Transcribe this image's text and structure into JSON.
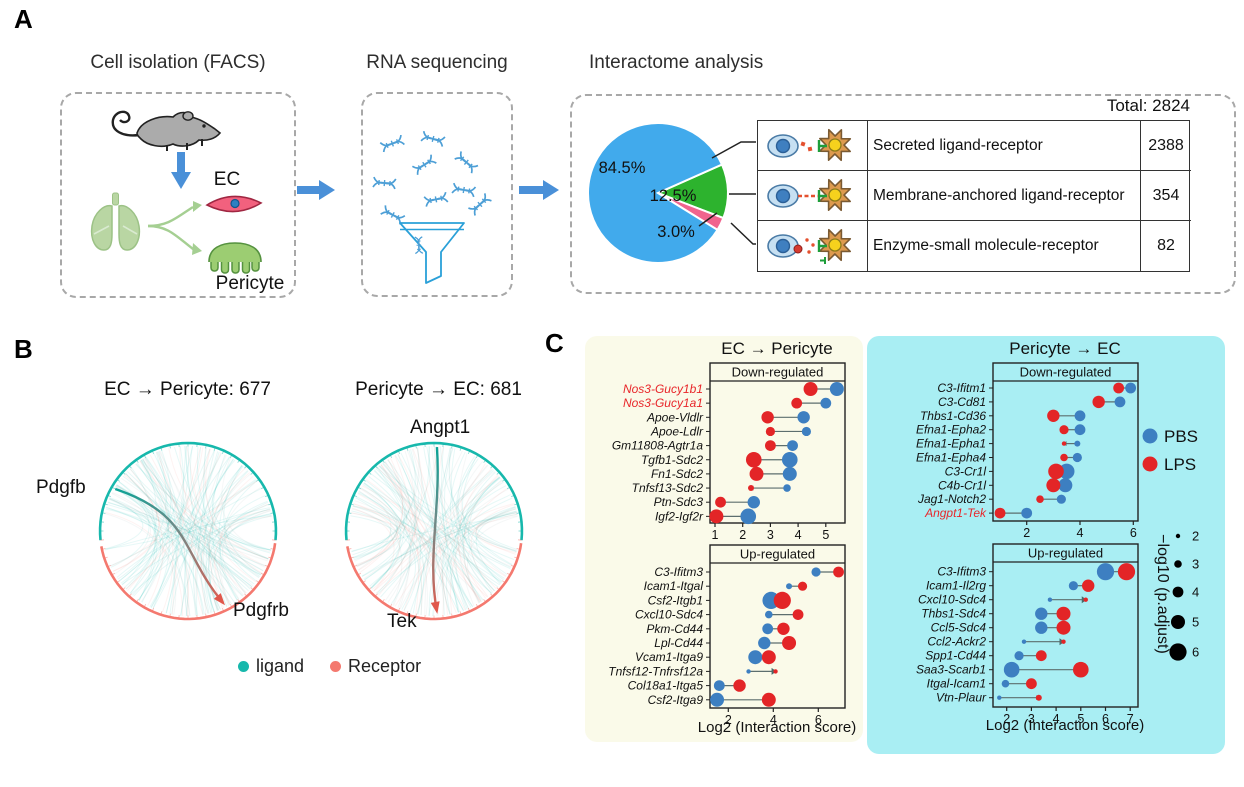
{
  "figure": {
    "panelA": {
      "label": "A",
      "step1_title": "Cell isolation (FACS)",
      "step2_title": "RNA sequencing",
      "step3_title": "Interactome analysis",
      "ec_label": "EC",
      "pericyte_label": "Pericyte",
      "total_label": "Total: 2824",
      "pie": {
        "slices": [
          {
            "label": "84.5%",
            "value": 84.5,
            "color": "#41aaec",
            "category": "Secreted ligand-receptor"
          },
          {
            "label": "12.5%",
            "value": 12.5,
            "color": "#2db32e",
            "category": "Membrane-anchored ligand-receptor"
          },
          {
            "label": "3.0%",
            "value": 3.0,
            "color": "#f0648e",
            "category": "Enzyme-small molecule-receptor"
          }
        ]
      },
      "table": {
        "rows": [
          {
            "icon": "secreted-ligand-receptor-icon",
            "name": "Secreted ligand-receptor",
            "count": "2388"
          },
          {
            "icon": "membrane-anchored-ligand-receptor-icon",
            "name": "Membrane-anchored ligand-receptor",
            "count": "354"
          },
          {
            "icon": "enzyme-small-molecule-receptor-icon",
            "name": "Enzyme-small molecule-receptor",
            "count": "82"
          }
        ]
      }
    },
    "panelB": {
      "label": "B",
      "left_title": "EC → Pericyte: 677",
      "right_title": "Pericyte → EC: 681",
      "left_ligand": "Pdgfb",
      "left_receptor": "Pdgfrb",
      "right_ligand": "Angpt1",
      "right_receptor": "Tek",
      "legend": [
        {
          "label": "ligand",
          "color": "#17b8ac"
        },
        {
          "label": "Receptor",
          "color": "#f4796f"
        }
      ]
    },
    "panelC": {
      "label": "C",
      "left_title": "EC → Pericyte",
      "right_title": "Pericyte → EC",
      "xlabel": "Log2 (Interaction score)",
      "series_legend": [
        {
          "label": "PBS",
          "color": "#3d7fc1"
        },
        {
          "label": "LPS",
          "color": "#e32527"
        }
      ],
      "size_legend": {
        "title": "−log10 (p.adjust)",
        "values": [
          2,
          3,
          4,
          5,
          6
        ]
      }
    }
  },
  "chart_data": [
    {
      "id": "interaction_pie",
      "type": "pie",
      "labels": [
        "Secreted ligand-receptor",
        "Membrane-anchored ligand-receptor",
        "Enzyme-small molecule-receptor"
      ],
      "values": [
        2388,
        354,
        82
      ],
      "percents": [
        84.5,
        12.5,
        3.0
      ],
      "percent_labels": [
        "84.5%",
        "12.5%",
        "3.0%"
      ],
      "total": 2824
    },
    {
      "id": "circos_ec_pericyte",
      "type": "chord",
      "title": "EC → Pericyte: 677",
      "n_interactions": 677,
      "highlight": {
        "ligand": "Pdgfb",
        "receptor": "Pdgfrb"
      }
    },
    {
      "id": "circos_pericyte_ec",
      "type": "chord",
      "title": "Pericyte → EC: 681",
      "n_interactions": 681,
      "highlight": {
        "ligand": "Angpt1",
        "receptor": "Tek"
      }
    },
    {
      "id": "ec_pericyte_down",
      "type": "dumbbell_dot",
      "group": "EC → Pericyte",
      "title": "Down-regulated",
      "xlabel": "Log2 (Interaction score)",
      "xticks": [
        1,
        2,
        3,
        4,
        5
      ],
      "series": [
        "PBS",
        "LPS"
      ],
      "size_encoding": "−log10 (p.adjust)",
      "rows": [
        {
          "pair": "Nos3-Gucy1b1",
          "red_label": true,
          "PBS": 5.4,
          "LPS": 4.45,
          "PBS_size": 5,
          "LPS_size": 5
        },
        {
          "pair": "Nos3-Gucy1a1",
          "red_label": true,
          "PBS": 5.0,
          "LPS": 3.95,
          "PBS_size": 4,
          "LPS_size": 4
        },
        {
          "pair": "Apoe-Vldlr",
          "PBS": 4.2,
          "LPS": 2.9,
          "PBS_size": 4.5,
          "LPS_size": 4.5
        },
        {
          "pair": "Apoe-Ldlr",
          "PBS": 4.3,
          "LPS": 3.0,
          "PBS_size": 3.5,
          "LPS_size": 3.5
        },
        {
          "pair": "Gm11808-Agtr1a",
          "PBS": 3.8,
          "LPS": 3.0,
          "PBS_size": 4,
          "LPS_size": 4
        },
        {
          "pair": "Tgfb1-Sdc2",
          "PBS": 3.7,
          "LPS": 2.4,
          "PBS_size": 5.5,
          "LPS_size": 5.5
        },
        {
          "pair": "Fn1-Sdc2",
          "PBS": 3.7,
          "LPS": 2.5,
          "PBS_size": 5,
          "LPS_size": 5
        },
        {
          "pair": "Tnfsf13-Sdc2",
          "PBS": 3.6,
          "LPS": 2.3,
          "PBS_size": 3,
          "LPS_size": 2.5
        },
        {
          "pair": "Ptn-Sdc3",
          "PBS": 2.4,
          "LPS": 1.2,
          "PBS_size": 4.5,
          "LPS_size": 4
        },
        {
          "pair": "Igf2-Igf2r",
          "PBS": 2.2,
          "LPS": 1.05,
          "PBS_size": 5.5,
          "LPS_size": 5
        }
      ]
    },
    {
      "id": "ec_pericyte_up",
      "type": "dumbbell_dot",
      "group": "EC → Pericyte",
      "title": "Up-regulated",
      "xlabel": "Log2 (Interaction score)",
      "xticks": [
        2,
        4,
        6
      ],
      "series": [
        "PBS",
        "LPS"
      ],
      "size_encoding": "−log10 (p.adjust)",
      "rows": [
        {
          "pair": "C3-Ifitm3",
          "PBS": 5.9,
          "LPS": 6.9,
          "PBS_size": 3.5,
          "LPS_size": 4
        },
        {
          "pair": "Icam1-Itgal",
          "PBS": 4.7,
          "LPS": 5.3,
          "PBS_size": 2.5,
          "LPS_size": 3.5
        },
        {
          "pair": "Csf2-Itgb1",
          "PBS": 3.9,
          "LPS": 4.4,
          "PBS_size": 6,
          "LPS_size": 6
        },
        {
          "pair": "Cxcl10-Sdc4",
          "PBS": 3.8,
          "LPS": 5.1,
          "PBS_size": 3,
          "LPS_size": 4
        },
        {
          "pair": "Pkm-Cd44",
          "PBS": 3.75,
          "LPS": 4.45,
          "PBS_size": 4,
          "LPS_size": 4.5
        },
        {
          "pair": "Lpl-Cd44",
          "PBS": 3.6,
          "LPS": 4.7,
          "PBS_size": 4.5,
          "LPS_size": 5
        },
        {
          "pair": "Vcam1-Itga9",
          "PBS": 3.2,
          "LPS": 3.8,
          "PBS_size": 5,
          "LPS_size": 5
        },
        {
          "pair": "Tnfsf12-Tnfrsf12a",
          "PBS": 2.9,
          "LPS": 4.1,
          "PBS_size": 2,
          "LPS_size": 2,
          "arrow": true
        },
        {
          "pair": "Col18a1-Itga5",
          "PBS": 1.6,
          "LPS": 2.5,
          "PBS_size": 4,
          "LPS_size": 4.5
        },
        {
          "pair": "Csf2-Itga9",
          "PBS": 1.5,
          "LPS": 3.8,
          "PBS_size": 5,
          "LPS_size": 5
        }
      ]
    },
    {
      "id": "pericyte_ec_down",
      "type": "dumbbell_dot",
      "group": "Pericyte → EC",
      "title": "Down-regulated",
      "xlabel": "Log2 (Interaction score)",
      "xticks": [
        2,
        4,
        6
      ],
      "series": [
        "PBS",
        "LPS"
      ],
      "size_encoding": "−log10 (p.adjust)",
      "rows": [
        {
          "pair": "C3-Ifitm1",
          "PBS": 5.9,
          "LPS": 5.45,
          "PBS_size": 4,
          "LPS_size": 4
        },
        {
          "pair": "C3-Cd81",
          "PBS": 5.5,
          "LPS": 4.7,
          "PBS_size": 4,
          "LPS_size": 4.5
        },
        {
          "pair": "Thbs1-Cd36",
          "PBS": 4.0,
          "LPS": 3.0,
          "PBS_size": 4,
          "LPS_size": 4.5
        },
        {
          "pair": "Efna1-Epha2",
          "PBS": 4.0,
          "LPS": 3.4,
          "PBS_size": 4,
          "LPS_size": 3.5
        },
        {
          "pair": "Efna1-Epha1",
          "PBS": 3.9,
          "LPS": 3.4,
          "PBS_size": 2.5,
          "LPS_size": 2
        },
        {
          "pair": "Efna1-Epha4",
          "PBS": 3.9,
          "LPS": 3.4,
          "PBS_size": 3.5,
          "LPS_size": 3
        },
        {
          "pair": "C3-Cr1l",
          "PBS": 3.5,
          "LPS": 3.1,
          "PBS_size": 5.5,
          "LPS_size": 5.5
        },
        {
          "pair": "C4b-Cr1l",
          "PBS": 3.45,
          "LPS": 3.0,
          "PBS_size": 5,
          "LPS_size": 5
        },
        {
          "pair": "Jag1-Notch2",
          "PBS": 3.3,
          "LPS": 2.5,
          "PBS_size": 3.5,
          "LPS_size": 3
        },
        {
          "pair": "Angpt1-Tek",
          "red_label": true,
          "PBS": 2.0,
          "LPS": 1.0,
          "PBS_size": 4,
          "LPS_size": 4
        }
      ]
    },
    {
      "id": "pericyte_ec_up",
      "type": "dumbbell_dot",
      "group": "Pericyte → EC",
      "title": "Up-regulated",
      "xlabel": "Log2 (Interaction score)",
      "xticks": [
        2,
        3,
        4,
        5,
        6,
        7
      ],
      "series": [
        "PBS",
        "LPS"
      ],
      "size_encoding": "−log10 (p.adjust)",
      "rows": [
        {
          "pair": "C3-Ifitm3",
          "PBS": 6.0,
          "LPS": 6.85,
          "PBS_size": 6,
          "LPS_size": 6
        },
        {
          "pair": "Icam1-Il2rg",
          "PBS": 4.7,
          "LPS": 5.3,
          "PBS_size": 3.5,
          "LPS_size": 4.5
        },
        {
          "pair": "Cxcl10-Sdc4",
          "PBS": 3.75,
          "LPS": 5.2,
          "PBS_size": 2,
          "LPS_size": 2,
          "arrow": true
        },
        {
          "pair": "Thbs1-Sdc4",
          "PBS": 3.4,
          "LPS": 4.3,
          "PBS_size": 4.5,
          "LPS_size": 5
        },
        {
          "pair": "Ccl5-Sdc4",
          "PBS": 3.4,
          "LPS": 4.3,
          "PBS_size": 4.5,
          "LPS_size": 5
        },
        {
          "pair": "Ccl2-Ackr2",
          "PBS": 2.7,
          "LPS": 4.3,
          "PBS_size": 2,
          "LPS_size": 2,
          "arrow": true
        },
        {
          "pair": "Spp1-Cd44",
          "PBS": 2.5,
          "LPS": 3.4,
          "PBS_size": 3.5,
          "LPS_size": 4
        },
        {
          "pair": "Saa3-Scarb1",
          "PBS": 2.2,
          "LPS": 5.0,
          "PBS_size": 5.5,
          "LPS_size": 5.5
        },
        {
          "pair": "Itgal-Icam1",
          "PBS": 1.95,
          "LPS": 3.0,
          "PBS_size": 3,
          "LPS_size": 4
        },
        {
          "pair": "Vtn-Plaur",
          "PBS": 1.7,
          "LPS": 3.3,
          "PBS_size": 2,
          "LPS_size": 2.5
        }
      ]
    }
  ]
}
